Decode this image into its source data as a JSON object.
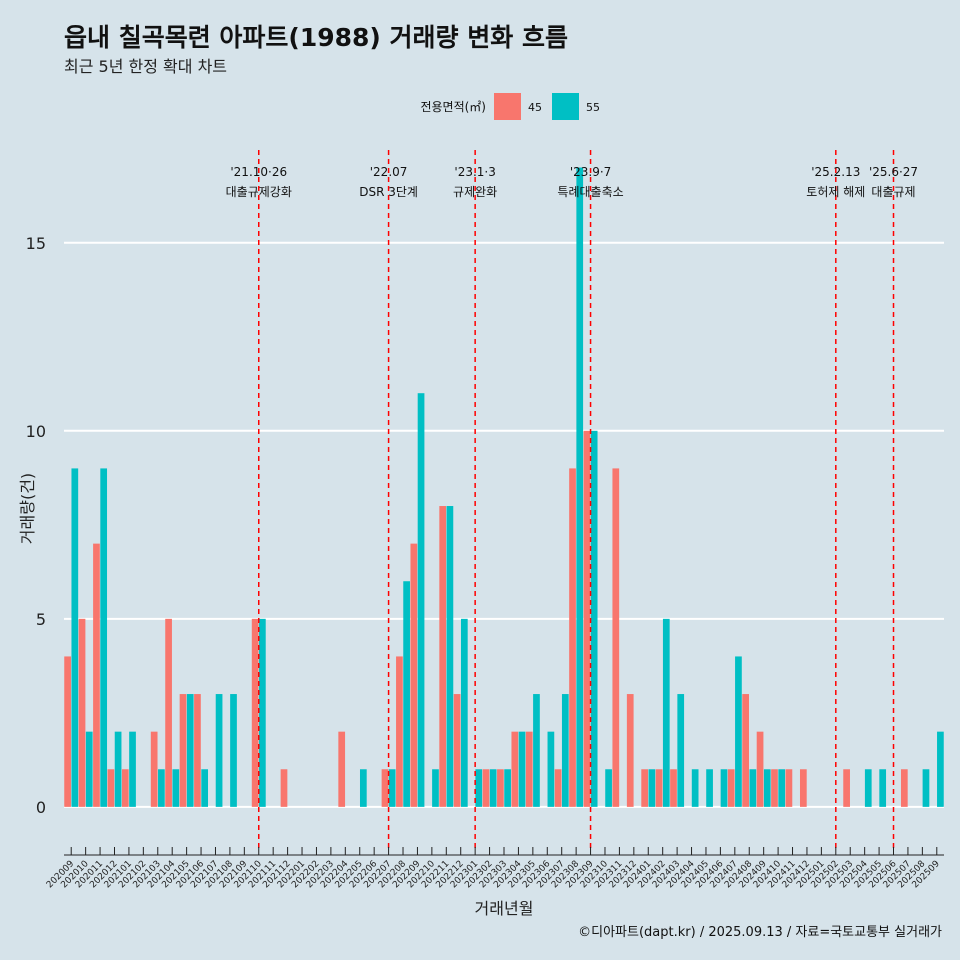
{
  "title": "읍내 칠곡목련 아파트(1988) 거래량 변화 흐름",
  "subtitle": "최근 5년 한정 확대 차트",
  "caption": "©디아파트(dapt.kr) / 2025.09.13 / 자료=국토교통부 실거래가",
  "colors": {
    "background": "#d6e3ea",
    "series45": "#f8766d",
    "series55": "#00bfc4",
    "event_line": "#ff0000",
    "grid": "#ffffff"
  },
  "chart_data": {
    "type": "bar",
    "xlabel": "거래년월",
    "ylabel": "거래량(건)",
    "ylim": [
      -1.2,
      17.6
    ],
    "yticks": [
      0,
      5,
      10,
      15
    ],
    "legend": {
      "title": "전용면적(㎡)",
      "position": "top"
    },
    "categories": [
      "202009",
      "202010",
      "202011",
      "202012",
      "202101",
      "202102",
      "202103",
      "202104",
      "202105",
      "202106",
      "202107",
      "202108",
      "202109",
      "202110",
      "202111",
      "202112",
      "202201",
      "202202",
      "202203",
      "202204",
      "202205",
      "202206",
      "202207",
      "202208",
      "202209",
      "202210",
      "202211",
      "202212",
      "202301",
      "202302",
      "202303",
      "202304",
      "202305",
      "202306",
      "202307",
      "202308",
      "202309",
      "202310",
      "202311",
      "202312",
      "202401",
      "202402",
      "202403",
      "202404",
      "202405",
      "202406",
      "202407",
      "202408",
      "202409",
      "202410",
      "202411",
      "202412",
      "202501",
      "202502",
      "202503",
      "202504",
      "202505",
      "202506",
      "202507",
      "202508",
      "202509"
    ],
    "series": [
      {
        "name": "45",
        "values": [
          4,
          5,
          7,
          1,
          1,
          0,
          2,
          5,
          3,
          3,
          0,
          0,
          0,
          5,
          0,
          1,
          0,
          0,
          0,
          2,
          0,
          0,
          1,
          4,
          7,
          0,
          8,
          3,
          0,
          1,
          1,
          2,
          2,
          0,
          1,
          9,
          10,
          0,
          9,
          3,
          1,
          1,
          1,
          0,
          0,
          0,
          1,
          3,
          2,
          1,
          1,
          1,
          0,
          0,
          1,
          0,
          0,
          0,
          1,
          0,
          0
        ]
      },
      {
        "name": "55",
        "values": [
          9,
          2,
          9,
          2,
          2,
          0,
          1,
          1,
          3,
          1,
          3,
          3,
          0,
          5,
          0,
          0,
          0,
          0,
          0,
          0,
          1,
          0,
          1,
          6,
          11,
          1,
          8,
          5,
          1,
          1,
          1,
          2,
          3,
          2,
          3,
          17,
          10,
          1,
          0,
          0,
          1,
          5,
          3,
          1,
          1,
          1,
          4,
          1,
          1,
          1,
          0,
          0,
          0,
          0,
          0,
          1,
          1,
          0,
          0,
          1,
          2
        ]
      }
    ],
    "events": [
      {
        "date_line1": "'21.10·26",
        "date_line2": "대출규제강화",
        "x": 13
      },
      {
        "date_line1": "'22.07",
        "date_line2": "DSR 3단계",
        "x": 22
      },
      {
        "date_line1": "'23.1·3",
        "date_line2": "규제완화",
        "x": 28
      },
      {
        "date_line1": "'23.9·7",
        "date_line2": "특례대출축소",
        "x": 36
      },
      {
        "date_line1": "'25.2.13",
        "date_line2": "토허제 해제",
        "x": 53
      },
      {
        "date_line1": "'25.6·27",
        "date_line2": "대출규제",
        "x": 57
      }
    ]
  }
}
